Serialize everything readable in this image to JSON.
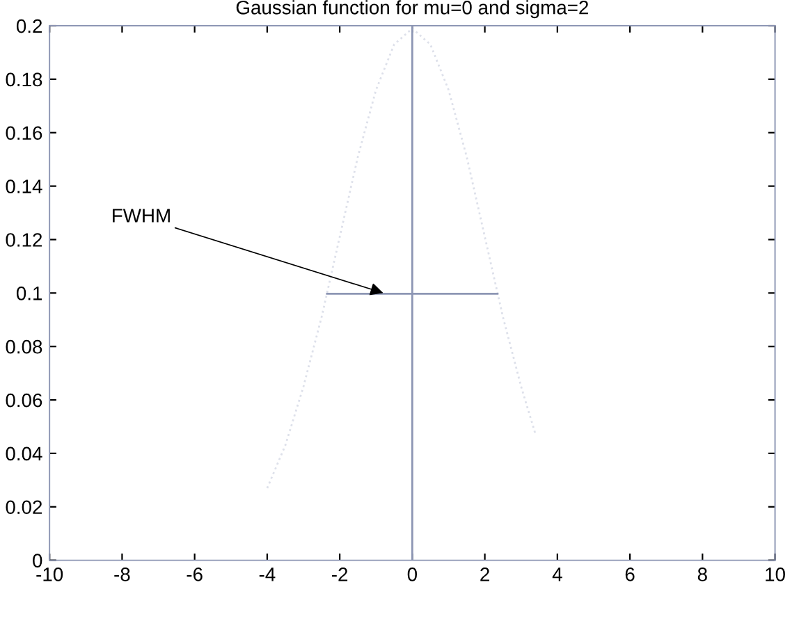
{
  "chart_data": {
    "type": "line",
    "title": "Gaussian function for mu=0 and sigma=2",
    "xlim": [
      -10,
      10
    ],
    "xticks": [
      -10,
      -8,
      -6,
      -4,
      -2,
      0,
      2,
      4,
      6,
      8,
      10
    ],
    "ylim": [
      0,
      0.2
    ],
    "yticks": [
      0,
      0.02,
      0.04,
      0.06,
      0.08,
      0.1,
      0.12,
      0.14,
      0.16,
      0.18,
      0.2
    ],
    "grid": false,
    "legend": false,
    "series": [
      {
        "color": "#dde0ea",
        "line_style": "dotted",
        "x": [
          -4,
          -3.5,
          -3,
          -2.5,
          -2,
          -1.5,
          -1,
          -0.5,
          0,
          0.5,
          1,
          1.5,
          2,
          2.5,
          3,
          3.4
        ],
        "values": [
          0.027,
          0.043,
          0.065,
          0.091,
          0.121,
          0.151,
          0.176,
          0.193,
          0.199,
          0.193,
          0.176,
          0.151,
          0.121,
          0.091,
          0.065,
          0.047
        ]
      },
      {
        "color": "#8d96b4",
        "line_style": "solid",
        "x": [
          0,
          0
        ],
        "values": [
          0,
          0.2
        ]
      },
      {
        "color": "#8d96b4",
        "line_style": "solid",
        "x": [
          -2.35,
          2.35
        ],
        "values": [
          0.0997,
          0.0997
        ]
      }
    ],
    "annotations": [
      {
        "text": "FWHM",
        "x": -0.8,
        "y": 0.1
      }
    ]
  }
}
